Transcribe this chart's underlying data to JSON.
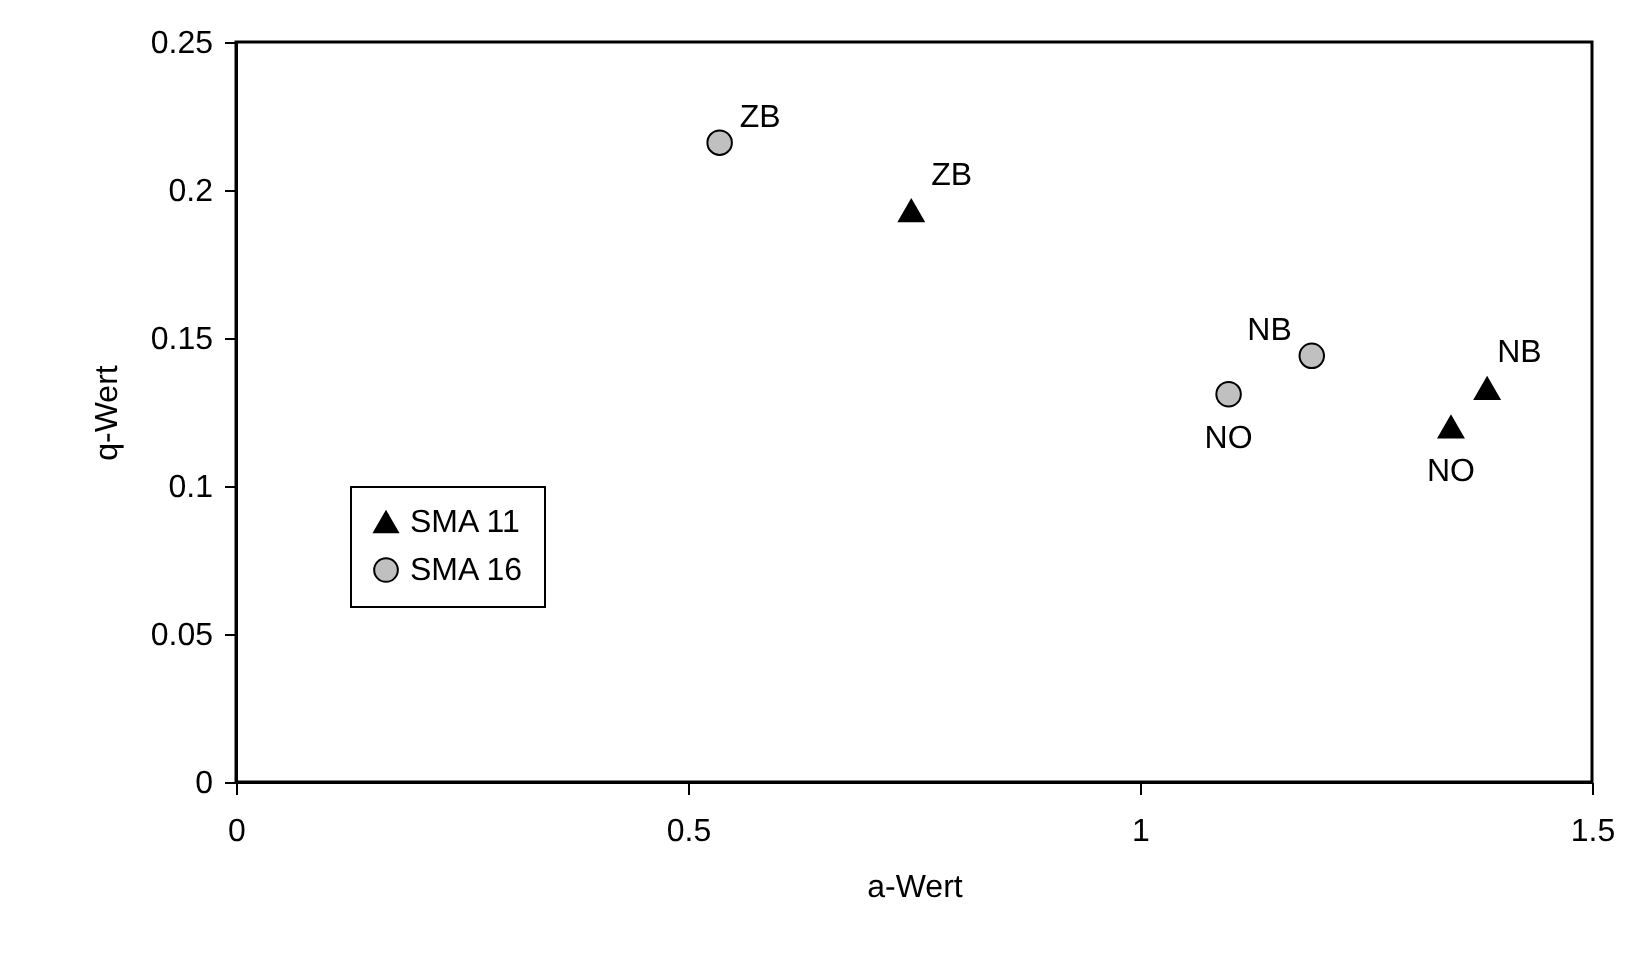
{
  "chart_data": {
    "type": "scatter",
    "xlabel": "a-Wert",
    "ylabel": "q-Wert",
    "xlim": [
      0,
      1.5
    ],
    "xticks": [
      0,
      0.5,
      1,
      1.5
    ],
    "ylim": [
      0,
      0.25
    ],
    "yticks": [
      0,
      0.05,
      0.1,
      0.15,
      0.2,
      0.25
    ],
    "grid": false,
    "legend": "bottom left",
    "series": [
      {
        "name": "SMA 11",
        "color": "#000000",
        "marker": "triangle",
        "x": [
          0.747,
          1.384,
          1.344
        ],
        "values": [
          0.193,
          0.133,
          0.12
        ],
        "value_labels": [
          "ZB",
          "NB",
          "NO"
        ]
      },
      {
        "name": "SMA 16",
        "color": "#c0c0c0",
        "marker": "circle",
        "x": [
          0.535,
          1.19,
          1.098
        ],
        "values": [
          0.216,
          0.144,
          0.131
        ],
        "value_labels": [
          "ZB",
          "NB",
          "NO"
        ]
      }
    ]
  }
}
